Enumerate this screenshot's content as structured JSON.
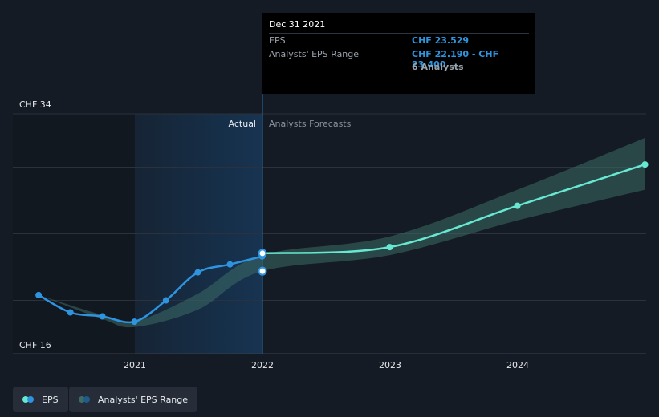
{
  "tooltip": {
    "date": "Dec 31 2021",
    "eps_label": "EPS",
    "eps_value": "CHF 23.529",
    "range_label": "Analysts' EPS Range",
    "range_value": "CHF 22.190 - CHF 23.400",
    "analysts": "6 Analysts"
  },
  "legend": {
    "eps": "EPS",
    "range": "Analysts' EPS Range"
  },
  "colors": {
    "background": "#151b24",
    "eps_actual": "#2f94e0",
    "eps_forecast": "#67e8d2",
    "range_band": "#3d6b66",
    "actual_shade": "#173554",
    "grid": "#2b323d"
  },
  "chart_data": {
    "type": "line",
    "y_axis": {
      "min": 16,
      "max": 34,
      "labels": [
        "CHF 34",
        "CHF 16"
      ]
    },
    "x_axis": {
      "ticks": [
        "2021",
        "2022",
        "2023",
        "2024"
      ]
    },
    "section_labels": {
      "actual": "Actual",
      "forecast": "Analysts Forecasts"
    },
    "series": [
      {
        "name": "EPS",
        "x": [
          "2020-03-31",
          "2020-06-30",
          "2020-09-30",
          "2020-12-31",
          "2021-03-31",
          "2021-06-30",
          "2021-09-30",
          "2021-12-31"
        ],
        "y": [
          20.4,
          19.1,
          18.8,
          18.4,
          20.0,
          22.1,
          22.7,
          23.3
        ]
      },
      {
        "name": "EPS",
        "x": [
          "2021-12-31",
          "2022-12-31",
          "2023-12-31",
          "2024-12-31"
        ],
        "y": [
          23.529,
          24.0,
          27.1,
          30.2
        ]
      },
      {
        "name": "Analysts' EPS Range",
        "x": [
          "2020-03-31",
          "2020-09-30",
          "2020-12-31",
          "2021-06-30",
          "2021-12-31",
          "2022-12-31",
          "2023-12-31",
          "2024-12-31"
        ],
        "low": [
          20.4,
          18.6,
          18.0,
          19.3,
          22.19,
          23.4,
          26.0,
          28.3
        ],
        "high": [
          20.4,
          18.9,
          18.4,
          20.5,
          23.4,
          24.8,
          28.3,
          32.2
        ]
      }
    ]
  }
}
